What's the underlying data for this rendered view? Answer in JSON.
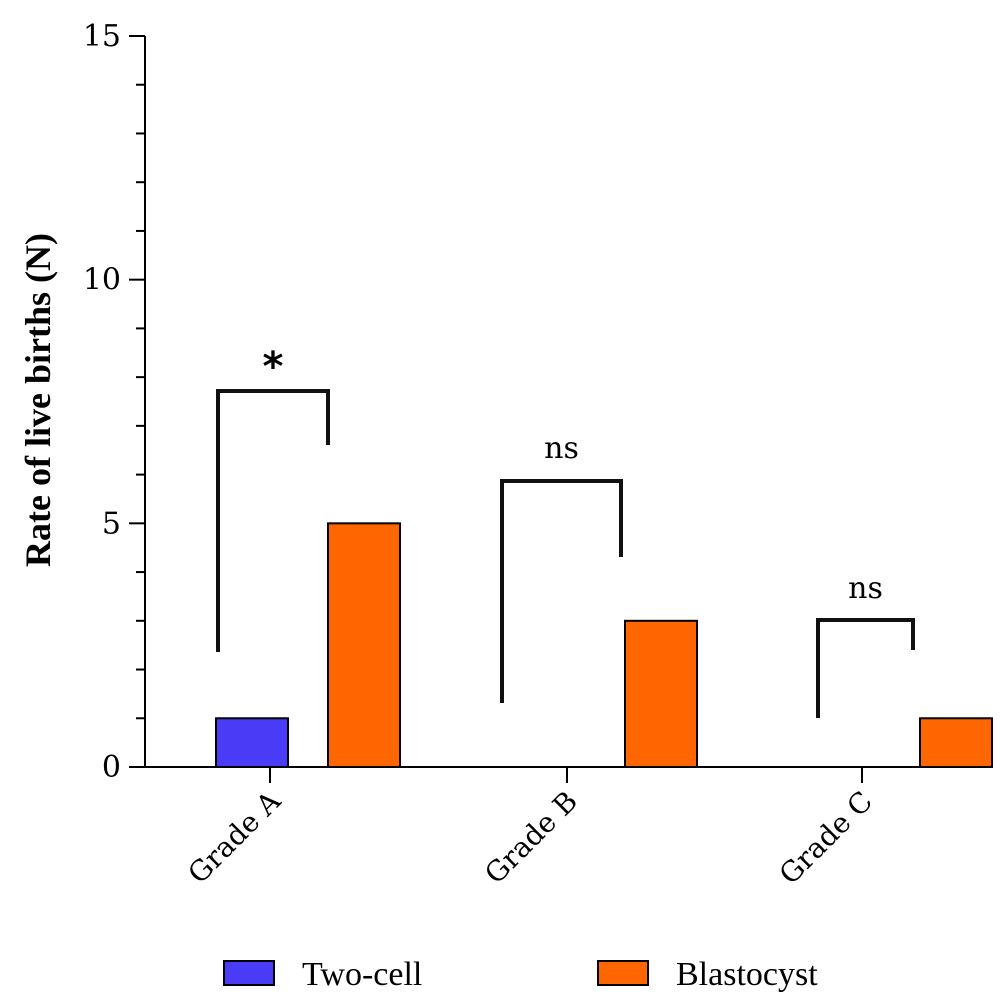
{
  "chart_data": {
    "type": "bar",
    "categories": [
      "Grade A",
      "Grade B",
      "Grade C"
    ],
    "series": [
      {
        "name": "Two-cell",
        "values": [
          1,
          0,
          0
        ],
        "color": "#4a3cf6"
      },
      {
        "name": "Blastocyst",
        "values": [
          5,
          3,
          1
        ],
        "color": "#ff6600"
      }
    ],
    "ylabel": "Rate of live births (N)",
    "xlabel": "",
    "ylim": [
      0,
      15
    ],
    "yticks": [
      "0",
      "5",
      "10",
      "15"
    ],
    "grid": false,
    "legend_position": "bottom",
    "annotations": [
      {
        "category": "Grade A",
        "text": "*"
      },
      {
        "category": "Grade B",
        "text": "ns"
      },
      {
        "category": "Grade C",
        "text": "ns"
      }
    ]
  }
}
